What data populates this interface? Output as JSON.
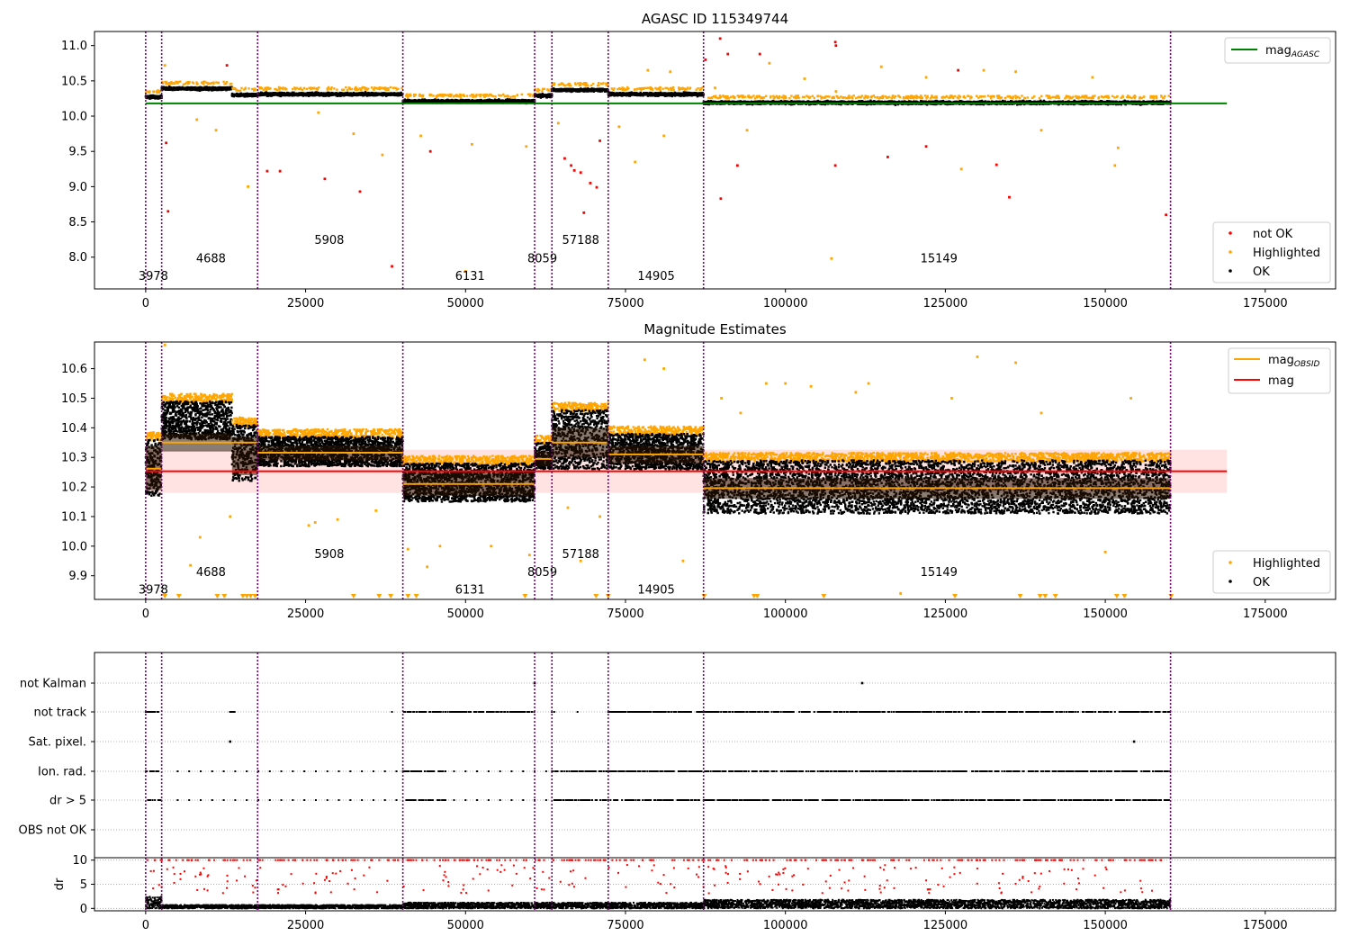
{
  "chart_data": [
    {
      "type": "scatter",
      "title": "AGASC ID 115349744",
      "xlabel": "",
      "ylabel": "",
      "xlim": [
        -8000,
        186000
      ],
      "ylim": [
        7.55,
        11.2
      ],
      "xticks": [
        0,
        25000,
        50000,
        75000,
        100000,
        125000,
        150000,
        175000
      ],
      "yticks": [
        8.0,
        8.5,
        9.0,
        9.5,
        10.0,
        10.5,
        11.0
      ],
      "xtick_labels": [
        "0",
        "25000",
        "50000",
        "75000",
        "100000",
        "125000",
        "150000",
        "175000"
      ],
      "ytick_labels": [
        "8.0",
        "8.5",
        "9.0",
        "9.5",
        "10.0",
        "10.5",
        "11.0"
      ],
      "obsid_boundaries": [
        0,
        2500,
        17500,
        40200,
        60800,
        63500,
        72300,
        87200,
        160200
      ],
      "obsid_segments": [
        {
          "x_start": 0,
          "x_end": 2500,
          "mag": 10.27
        },
        {
          "x_start": 2500,
          "x_end": 13500,
          "mag": 10.39
        },
        {
          "x_start": 13500,
          "x_end": 17500,
          "mag": 10.3
        },
        {
          "x_start": 17500,
          "x_end": 40200,
          "mag": 10.31
        },
        {
          "x_start": 40200,
          "x_end": 60800,
          "mag": 10.21
        },
        {
          "x_start": 60800,
          "x_end": 63500,
          "mag": 10.29
        },
        {
          "x_start": 63500,
          "x_end": 72300,
          "mag": 10.37
        },
        {
          "x_start": 72300,
          "x_end": 87200,
          "mag": 10.31
        },
        {
          "x_start": 87200,
          "x_end": 160200,
          "mag": 10.19
        }
      ],
      "mag_agasc": {
        "value": 10.18,
        "x_range": [
          0,
          169000
        ]
      },
      "obsid_labels": [
        {
          "text": "3978",
          "x": 1200,
          "y": 7.74
        },
        {
          "text": "4688",
          "x": 10200,
          "y": 7.99
        },
        {
          "text": "5908",
          "x": 28700,
          "y": 8.25
        },
        {
          "text": "6131",
          "x": 50700,
          "y": 7.74
        },
        {
          "text": "8059",
          "x": 62000,
          "y": 7.99
        },
        {
          "text": "57188",
          "x": 68000,
          "y": 8.25
        },
        {
          "text": "14905",
          "x": 79800,
          "y": 7.74
        },
        {
          "text": "15149",
          "x": 124000,
          "y": 7.99
        }
      ],
      "legend_upper": {
        "placement": "upper right",
        "entries": [
          {
            "label": "mag",
            "sub": "AGASC",
            "color": "#008000"
          }
        ]
      },
      "legend_lower": {
        "placement": "lower right",
        "entries": [
          {
            "label": "not OK",
            "color": "#ff0000"
          },
          {
            "label": "Highlighted",
            "color": "#ffa500"
          },
          {
            "label": "OK",
            "color": "#000000"
          }
        ]
      },
      "series_outliers": {
        "not_ok": [
          [
            3200,
            9.62
          ],
          [
            3500,
            8.65
          ],
          [
            12700,
            10.72
          ],
          [
            19000,
            9.22
          ],
          [
            21000,
            9.22
          ],
          [
            28000,
            9.11
          ],
          [
            33500,
            8.93
          ],
          [
            38500,
            7.87
          ],
          [
            44500,
            9.5
          ],
          [
            65500,
            9.4
          ],
          [
            66500,
            9.3
          ],
          [
            67000,
            9.23
          ],
          [
            68000,
            9.2
          ],
          [
            68500,
            8.63
          ],
          [
            69500,
            9.05
          ],
          [
            70500,
            8.99
          ],
          [
            71000,
            9.65
          ],
          [
            87500,
            10.8
          ],
          [
            89800,
            11.1
          ],
          [
            89900,
            8.83
          ],
          [
            91000,
            10.88
          ],
          [
            92500,
            9.3
          ],
          [
            96000,
            10.88
          ],
          [
            107800,
            11.05
          ],
          [
            107900,
            11.0
          ],
          [
            107800,
            9.3
          ],
          [
            116000,
            9.42
          ],
          [
            122000,
            9.57
          ],
          [
            127000,
            10.65
          ],
          [
            133000,
            9.31
          ],
          [
            135000,
            8.85
          ],
          [
            159500,
            8.6
          ]
        ],
        "highlighted": [
          [
            3000,
            10.72
          ],
          [
            8000,
            9.95
          ],
          [
            11000,
            9.8
          ],
          [
            16000,
            9.0
          ],
          [
            27000,
            10.05
          ],
          [
            32500,
            9.75
          ],
          [
            37000,
            9.45
          ],
          [
            43000,
            9.72
          ],
          [
            51000,
            9.6
          ],
          [
            50000,
            7.8
          ],
          [
            59500,
            9.57
          ],
          [
            64500,
            9.9
          ],
          [
            74000,
            9.85
          ],
          [
            76500,
            9.35
          ],
          [
            78500,
            10.65
          ],
          [
            81000,
            9.72
          ],
          [
            82000,
            10.63
          ],
          [
            89000,
            10.4
          ],
          [
            94000,
            9.8
          ],
          [
            97500,
            10.75
          ],
          [
            103000,
            10.53
          ],
          [
            107200,
            7.98
          ],
          [
            107900,
            10.35
          ],
          [
            115000,
            10.7
          ],
          [
            122000,
            10.55
          ],
          [
            127500,
            9.25
          ],
          [
            131000,
            10.65
          ],
          [
            136000,
            10.63
          ],
          [
            140000,
            9.8
          ],
          [
            148000,
            10.55
          ],
          [
            151500,
            9.3
          ],
          [
            152000,
            9.55
          ]
        ]
      }
    },
    {
      "type": "scatter",
      "title": "Magnitude Estimates",
      "xlabel": "",
      "ylabel": "",
      "xlim": [
        -8000,
        186000
      ],
      "ylim": [
        9.82,
        10.69
      ],
      "xticks": [
        0,
        25000,
        50000,
        75000,
        100000,
        125000,
        150000,
        175000
      ],
      "yticks": [
        9.9,
        10.0,
        10.1,
        10.2,
        10.3,
        10.4,
        10.5,
        10.6
      ],
      "xtick_labels": [
        "0",
        "25000",
        "50000",
        "75000",
        "100000",
        "125000",
        "150000",
        "175000"
      ],
      "ytick_labels": [
        "9.9",
        "10.0",
        "10.1",
        "10.2",
        "10.3",
        "10.4",
        "10.5",
        "10.6"
      ],
      "mag": {
        "value": 10.253,
        "band": [
          10.18,
          10.326
        ],
        "x_range": [
          0,
          169000
        ]
      },
      "obsid_bands": [
        {
          "x_start": 0,
          "x_end": 2500,
          "mag": 10.262,
          "lo": 10.19,
          "hi": 10.34,
          "ok_lo": 10.17,
          "ok_hi": 10.36
        },
        {
          "x_start": 2500,
          "x_end": 13500,
          "mag": 10.35,
          "lo": 10.32,
          "hi": 10.38,
          "ok_lo": 10.36,
          "ok_hi": 10.49
        },
        {
          "x_start": 13500,
          "x_end": 17500,
          "mag": 10.35,
          "lo": 10.24,
          "hi": 10.37,
          "ok_lo": 10.22,
          "ok_hi": 10.41
        },
        {
          "x_start": 17500,
          "x_end": 40200,
          "mag": 10.316,
          "lo": 10.29,
          "hi": 10.34,
          "ok_lo": 10.27,
          "ok_hi": 10.37
        },
        {
          "x_start": 40200,
          "x_end": 60800,
          "mag": 10.21,
          "lo": 10.17,
          "hi": 10.25,
          "ok_lo": 10.15,
          "ok_hi": 10.28
        },
        {
          "x_start": 60800,
          "x_end": 63500,
          "mag": 10.295,
          "lo": 10.27,
          "hi": 10.32,
          "ok_lo": 10.26,
          "ok_hi": 10.35
        },
        {
          "x_start": 63500,
          "x_end": 72300,
          "mag": 10.35,
          "lo": 10.3,
          "hi": 10.4,
          "ok_lo": 10.26,
          "ok_hi": 10.46
        },
        {
          "x_start": 72300,
          "x_end": 87200,
          "mag": 10.31,
          "lo": 10.28,
          "hi": 10.34,
          "ok_lo": 10.26,
          "ok_hi": 10.38
        },
        {
          "x_start": 87200,
          "x_end": 160200,
          "mag": 10.196,
          "lo": 10.16,
          "hi": 10.23,
          "ok_lo": 10.11,
          "ok_hi": 10.29
        }
      ],
      "obsid_labels": [
        {
          "text": "3978",
          "x": 1200,
          "y": 9.855
        },
        {
          "text": "4688",
          "x": 10200,
          "y": 9.915
        },
        {
          "text": "5908",
          "x": 28700,
          "y": 9.975
        },
        {
          "text": "6131",
          "x": 50700,
          "y": 9.855
        },
        {
          "text": "8059",
          "x": 62000,
          "y": 9.915
        },
        {
          "text": "57188",
          "x": 68000,
          "y": 9.975
        },
        {
          "text": "14905",
          "x": 79800,
          "y": 9.855
        },
        {
          "text": "15149",
          "x": 124000,
          "y": 9.915
        }
      ],
      "legend_upper": {
        "placement": "upper right",
        "entries": [
          {
            "label": "mag",
            "sub": "OBSID",
            "color": "#ffa500"
          },
          {
            "label": "mag",
            "sub": "",
            "color": "#ff0000"
          }
        ]
      },
      "legend_lower": {
        "placement": "lower right",
        "entries": [
          {
            "label": "Highlighted",
            "color": "#ffa500"
          },
          {
            "label": "OK",
            "color": "#000000"
          }
        ]
      },
      "series_outliers": {
        "highlighted": [
          [
            3000,
            10.68
          ],
          [
            7000,
            9.935
          ],
          [
            8500,
            10.03
          ],
          [
            13200,
            10.1
          ],
          [
            25500,
            10.07
          ],
          [
            26500,
            10.08
          ],
          [
            30000,
            10.09
          ],
          [
            36000,
            10.12
          ],
          [
            41000,
            9.99
          ],
          [
            44000,
            9.93
          ],
          [
            46000,
            10.0
          ],
          [
            54000,
            10.0
          ],
          [
            60000,
            9.97
          ],
          [
            66000,
            10.13
          ],
          [
            68000,
            9.95
          ],
          [
            71000,
            10.1
          ],
          [
            78000,
            10.63
          ],
          [
            81000,
            10.6
          ],
          [
            84000,
            9.95
          ],
          [
            90000,
            10.5
          ],
          [
            93000,
            10.45
          ],
          [
            97000,
            10.55
          ],
          [
            100000,
            10.55
          ],
          [
            104000,
            10.54
          ],
          [
            111000,
            10.52
          ],
          [
            113000,
            10.55
          ],
          [
            118000,
            9.84
          ],
          [
            126000,
            10.5
          ],
          [
            130000,
            10.64
          ],
          [
            136000,
            10.62
          ],
          [
            140000,
            10.45
          ],
          [
            150000,
            9.98
          ],
          [
            154000,
            10.5
          ]
        ],
        "below_range_x": [
          3000,
          5200,
          11200,
          12300,
          15200,
          15800,
          16400,
          17100,
          32500,
          36500,
          38300,
          41000,
          42300,
          59300,
          70400,
          72300,
          87300,
          95100,
          95600,
          106000,
          126500,
          136700,
          139800,
          140600,
          142200,
          151800,
          153000,
          160300
        ]
      }
    },
    {
      "type": "scatter",
      "title": "",
      "xlabel": "",
      "ylabel": "",
      "xlim": [
        -8000,
        186000
      ],
      "xticks": [
        0,
        25000,
        50000,
        75000,
        100000,
        125000,
        150000,
        175000
      ],
      "flag_rows": [
        "not Kalman",
        "not track",
        "Sat. pixel.",
        "Ion. rad.",
        "dr > 5",
        "OBS not OK"
      ],
      "flag_spans": [
        {
          "flag": "not Kalman",
          "points": [
            60800,
            112000
          ]
        },
        {
          "flag": "not track",
          "spans": [
            [
              0,
              2500
            ],
            [
              13000,
              14000
            ],
            [
              38500,
              38800
            ],
            [
              40200,
              60800
            ],
            [
              63500,
              64000
            ],
            [
              67500,
              67600
            ],
            [
              72300,
              160200
            ]
          ]
        },
        {
          "flag": "Sat. pixel.",
          "points": [
            13200,
            154500
          ]
        },
        {
          "flag": "Ion. rad.",
          "spans": [
            [
              0,
              2500
            ],
            [
              40200,
              47000
            ],
            [
              63500,
              72300
            ],
            [
              72300,
              160200
            ]
          ],
          "sparse": [
            5000,
            160200
          ]
        },
        {
          "flag": "dr > 5",
          "spans": [
            [
              0,
              2500
            ],
            [
              40200,
              47000
            ],
            [
              63500,
              72300
            ],
            [
              72300,
              160200
            ]
          ],
          "sparse": [
            5000,
            160200
          ]
        },
        {
          "flag": "OBS not OK",
          "spans": []
        }
      ]
    },
    {
      "type": "scatter",
      "title": "",
      "xlabel": "",
      "ylabel": "dr",
      "xlim": [
        -8000,
        186000
      ],
      "ylim": [
        -0.5,
        10.5
      ],
      "xticks": [
        0,
        25000,
        50000,
        75000,
        100000,
        125000,
        150000,
        175000
      ],
      "yticks": [
        0,
        5,
        10
      ],
      "xtick_labels": [
        "0",
        "25000",
        "50000",
        "75000",
        "100000",
        "125000",
        "150000",
        "175000"
      ],
      "ytick_labels": [
        "0",
        "5",
        "10"
      ],
      "dr_typical": [
        {
          "x_start": 0,
          "x_end": 2500,
          "dr": 2.0
        },
        {
          "x_start": 2500,
          "x_end": 40200,
          "dr": 0.6
        },
        {
          "x_start": 40200,
          "x_end": 87200,
          "dr": 1.0
        },
        {
          "x_start": 87200,
          "x_end": 160200,
          "dr": 1.5
        }
      ],
      "dr_capped_line": 10
    }
  ],
  "colors": {
    "ok": "#000000",
    "highlighted": "#ffa500",
    "not_ok": "#ff0000",
    "agasc": "#008000",
    "mag_line": "#ff0000",
    "mag_band": "#ffdddd",
    "obsid": "#ffa500",
    "boundary": "#800080"
  }
}
